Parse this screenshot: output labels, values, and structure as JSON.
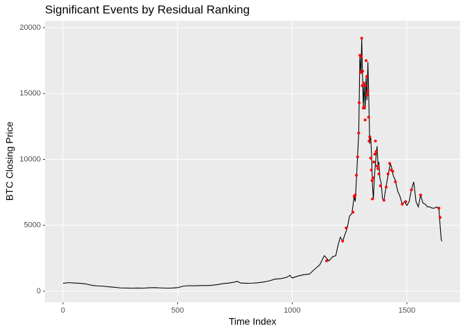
{
  "chart_data": {
    "type": "line",
    "title": "Significant Events by Residual Ranking",
    "x_label": "Time Index",
    "y_label": "BTC Closing Price",
    "xlim": [
      -78.5,
      1732.5
    ],
    "ylim": [
      -840,
      20525
    ],
    "xticks": [
      0,
      500,
      1000,
      1500
    ],
    "yticks": [
      0,
      5000,
      10000,
      15000,
      20000
    ],
    "grid": true,
    "line": {
      "color": "#000000",
      "x": [
        0,
        25,
        50,
        75,
        100,
        125,
        150,
        175,
        200,
        225,
        250,
        275,
        300,
        325,
        350,
        375,
        400,
        425,
        450,
        475,
        500,
        525,
        550,
        575,
        600,
        625,
        650,
        675,
        700,
        725,
        750,
        760,
        775,
        800,
        825,
        850,
        875,
        900,
        925,
        950,
        975,
        990,
        1000,
        1025,
        1050,
        1075,
        1100,
        1120,
        1140,
        1150,
        1160,
        1175,
        1190,
        1200,
        1210,
        1220,
        1230,
        1240,
        1250,
        1260,
        1265,
        1270,
        1275,
        1280,
        1285,
        1290,
        1295,
        1300,
        1303,
        1306,
        1310,
        1314,
        1318,
        1322,
        1326,
        1330,
        1334,
        1338,
        1342,
        1346,
        1350,
        1354,
        1358,
        1362,
        1366,
        1370,
        1374,
        1378,
        1382,
        1388,
        1394,
        1400,
        1410,
        1420,
        1428,
        1435,
        1440,
        1450,
        1460,
        1470,
        1480,
        1490,
        1500,
        1510,
        1520,
        1530,
        1540,
        1550,
        1560,
        1570,
        1580,
        1590,
        1600,
        1610,
        1620,
        1630,
        1640,
        1645,
        1650,
        1653
      ],
      "values": [
        600,
        650,
        620,
        600,
        550,
        450,
        400,
        380,
        330,
        300,
        250,
        240,
        230,
        240,
        230,
        260,
        270,
        250,
        230,
        240,
        270,
        380,
        420,
        410,
        430,
        430,
        450,
        500,
        580,
        620,
        700,
        750,
        620,
        600,
        610,
        640,
        700,
        780,
        920,
        950,
        1050,
        1200,
        1000,
        1150,
        1250,
        1300,
        1700,
        2000,
        2700,
        2500,
        2300,
        2600,
        2700,
        3500,
        4100,
        3800,
        4300,
        4800,
        5700,
        5900,
        6500,
        7200,
        6800,
        8500,
        10200,
        12000,
        17800,
        16500,
        19200,
        16800,
        14000,
        15800,
        13800,
        16200,
        14500,
        17400,
        14600,
        11200,
        11800,
        10400,
        8000,
        7000,
        8500,
        9500,
        10300,
        11000,
        9600,
        9800,
        8600,
        8200,
        7000,
        6900,
        8000,
        9000,
        9700,
        9300,
        8800,
        8400,
        7600,
        7200,
        6600,
        6800,
        6500,
        6800,
        7700,
        8300,
        6800,
        6400,
        7300,
        6700,
        6600,
        6400,
        6400,
        6300,
        6300,
        6400,
        6200,
        5000,
        3900,
        3800
      ]
    },
    "events": {
      "color": "#ff0000",
      "x": [
        1150,
        1220,
        1235,
        1265,
        1270,
        1275,
        1280,
        1285,
        1290,
        1292,
        1295,
        1298,
        1300,
        1303,
        1305,
        1307,
        1310,
        1312,
        1315,
        1318,
        1320,
        1322,
        1325,
        1328,
        1330,
        1333,
        1335,
        1338,
        1342,
        1345,
        1348,
        1350,
        1352,
        1356,
        1360,
        1363,
        1366,
        1370,
        1374,
        1378,
        1385,
        1400,
        1410,
        1418,
        1425,
        1432,
        1438,
        1450,
        1480,
        1495,
        1520,
        1560,
        1640,
        1645
      ],
      "values": [
        2300,
        3800,
        4800,
        6000,
        7200,
        7300,
        8800,
        10200,
        12000,
        14300,
        17900,
        16600,
        17800,
        19200,
        15600,
        16700,
        13900,
        15800,
        14000,
        13000,
        15600,
        17500,
        16300,
        14900,
        15200,
        13200,
        11400,
        11700,
        10100,
        9200,
        8400,
        7000,
        8600,
        9800,
        10400,
        11400,
        10600,
        9500,
        9300,
        8900,
        8000,
        6900,
        7900,
        8900,
        9700,
        9200,
        9100,
        8300,
        6600,
        6800,
        7700,
        7300,
        6300,
        5600
      ]
    }
  }
}
